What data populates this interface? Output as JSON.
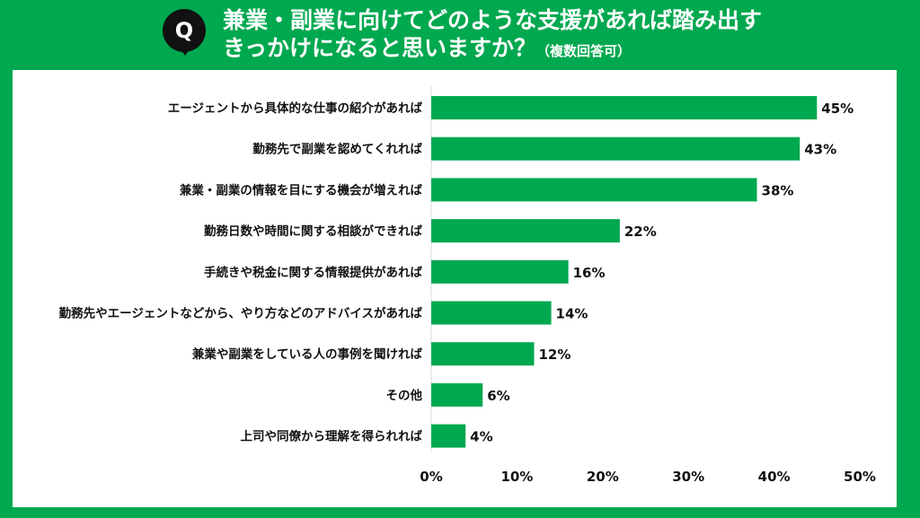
{
  "header": {
    "badge": "Q",
    "title_line1": "兼業・副業に向けてどのような支援があれば踏み出す",
    "title_line2": "きっかけになると思いますか？",
    "title_note": "（複数回答可）"
  },
  "colors": {
    "bar": "#00a84f",
    "frame": "#00a84f",
    "text": "#111111"
  },
  "chart_data": {
    "type": "bar",
    "orientation": "horizontal",
    "categories": [
      "エージェントから具体的な仕事の紹介があれば",
      "勤務先で副業を認めてくれれば",
      "兼業・副業の情報を目にする機会が増えれば",
      "勤務日数や時間に関する相談ができれば",
      "手続きや税金に関する情報提供があれば",
      "勤務先やエージェントなどから、やり方などのアドバイスがあれば",
      "兼業や副業をしている人の事例を聞ければ",
      "その他",
      "上司や同僚から理解を得られれば"
    ],
    "values": [
      45,
      43,
      38,
      22,
      16,
      14,
      12,
      6,
      4
    ],
    "value_labels": [
      "45%",
      "43%",
      "38%",
      "22%",
      "16%",
      "14%",
      "12%",
      "6%",
      "4%"
    ],
    "xlim": [
      0,
      50
    ],
    "xticks": [
      0,
      10,
      20,
      30,
      40,
      50
    ],
    "xtick_labels": [
      "0%",
      "10%",
      "20%",
      "30%",
      "40%",
      "50%"
    ],
    "grid": false,
    "legend": "none"
  }
}
